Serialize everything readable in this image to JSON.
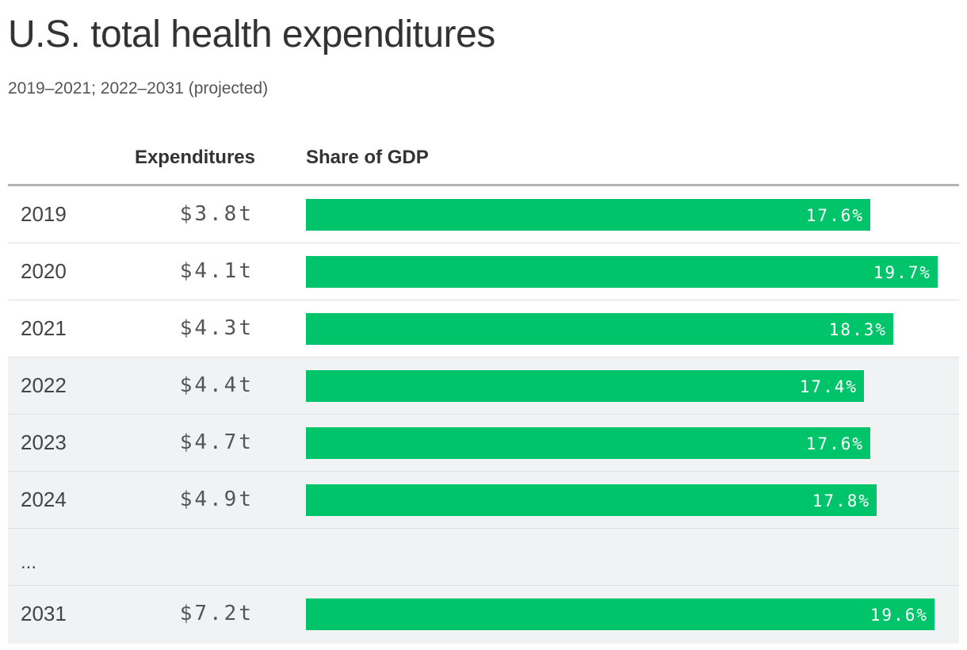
{
  "chart_data": {
    "type": "table",
    "title": "U.S. total health expenditures",
    "subtitle": "2019–2021; 2022–2031 (projected)",
    "columns": [
      "Expenditures",
      "Share of GDP"
    ],
    "x_range_max": 21.0,
    "colors": {
      "bar": "#00c46a",
      "projected_row_bg": "#f1f2f4"
    },
    "rows": [
      {
        "year": "2019",
        "expenditure": "$3.8t",
        "share": 17.6,
        "share_label": "17.6%",
        "projected": false
      },
      {
        "year": "2020",
        "expenditure": "$4.1t",
        "share": 19.7,
        "share_label": "19.7%",
        "projected": false
      },
      {
        "year": "2021",
        "expenditure": "$4.3t",
        "share": 18.3,
        "share_label": "18.3%",
        "projected": false
      },
      {
        "year": "2022",
        "expenditure": "$4.4t",
        "share": 17.4,
        "share_label": "17.4%",
        "projected": true
      },
      {
        "year": "2023",
        "expenditure": "$4.7t",
        "share": 17.6,
        "share_label": "17.6%",
        "projected": true
      },
      {
        "year": "2024",
        "expenditure": "$4.9t",
        "share": 17.8,
        "share_label": "17.8%",
        "projected": true
      },
      {
        "ellipsis": "...",
        "projected": true
      },
      {
        "year": "2031",
        "expenditure": "$7.2t",
        "share": 19.6,
        "share_label": "19.6%",
        "projected": true
      }
    ]
  }
}
